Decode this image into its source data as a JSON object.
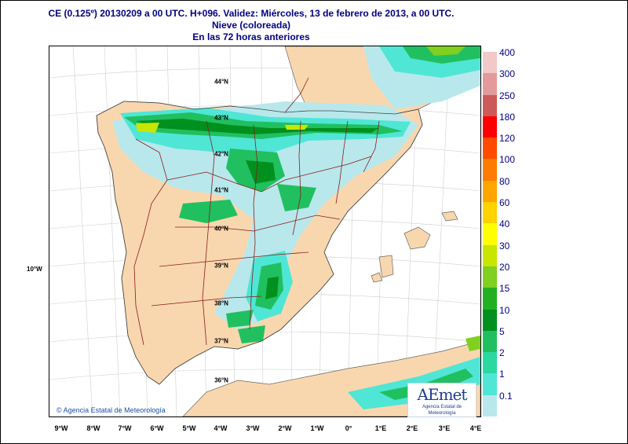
{
  "title": {
    "line1": "CE (0.125º) 20130209 a 00 UTC.  H+096. Validez: Miércoles, 13 de febrero de 2013,  a  00 UTC.",
    "line2": "Nieve (coloreada)",
    "line3": "En las 72 horas anteriores"
  },
  "map": {
    "lon_labels": [
      "9°W",
      "8°W",
      "7°W",
      "6°W",
      "5°W",
      "4°W",
      "3°W",
      "2°W",
      "1°W",
      "0°",
      "1°E",
      "2°E",
      "3°E",
      "4°E"
    ],
    "lat_labels": [
      "44°N",
      "43°N",
      "42°N",
      "41°N",
      "40°N",
      "39°N",
      "38°N",
      "37°N",
      "36°N"
    ],
    "side_label": "10°W",
    "copyright": "© Agencia Estatal de Meteorología",
    "colors": {
      "land": "#f9d7ae",
      "sea": "#ffffff",
      "borders": "#8b1a1a",
      "grid": "#d0d0d0"
    }
  },
  "logo": {
    "name": "AEmet",
    "subtitle": "Agencia Estatal de Meteorología"
  },
  "legend": {
    "unit_note": "",
    "items": [
      {
        "label": "400",
        "color": "#f2c8c8"
      },
      {
        "label": "300",
        "color": "#e49a9a"
      },
      {
        "label": "250",
        "color": "#cc5a5a"
      },
      {
        "label": "180",
        "color": "#ff0000"
      },
      {
        "label": "120",
        "color": "#ff4a00"
      },
      {
        "label": "100",
        "color": "#ff7a00"
      },
      {
        "label": "80",
        "color": "#ffa500"
      },
      {
        "label": "60",
        "color": "#ffd200"
      },
      {
        "label": "40",
        "color": "#ffff00"
      },
      {
        "label": "30",
        "color": "#c8e600"
      },
      {
        "label": "20",
        "color": "#7fd020"
      },
      {
        "label": "15",
        "color": "#22b022"
      },
      {
        "label": "10",
        "color": "#00901e"
      },
      {
        "label": "5",
        "color": "#20c060"
      },
      {
        "label": "2",
        "color": "#2ad8a0"
      },
      {
        "label": "1",
        "color": "#4fe6d6"
      },
      {
        "label": "0.1",
        "color": "#b8e8ec"
      }
    ]
  }
}
